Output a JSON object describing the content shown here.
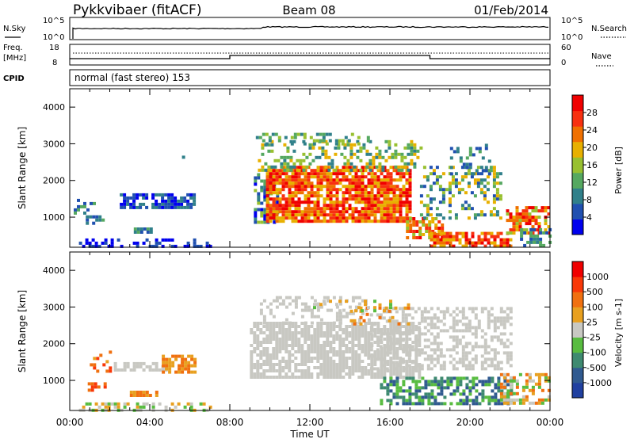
{
  "header": {
    "station": "Pykkvibaer (fitACF)",
    "beam": "Beam 08",
    "date": "01/Feb/2014"
  },
  "noise_panel": {
    "left_label": "N.Sky",
    "right_label": "N.Search",
    "ytick_top": "10^5",
    "ytick_bottom": "10^0"
  },
  "freq_panel": {
    "label_line1": "Freq.",
    "label_line2": "[MHz]",
    "right_label": "Nave",
    "left_ticks": [
      "18",
      "8"
    ],
    "right_ticks": [
      "60",
      "0"
    ],
    "freq_steps": [
      {
        "start": 0,
        "end": 8.0,
        "level": "low"
      },
      {
        "start": 8.0,
        "end": 18.0,
        "level": "high"
      },
      {
        "start": 18.0,
        "end": 24.0,
        "level": "low"
      }
    ]
  },
  "cpid": {
    "label": "CPID",
    "text": "normal (fast stereo) 153"
  },
  "chart_data": [
    {
      "type": "heatmap",
      "name": "power",
      "ylabel": "Slant Range [km]",
      "ylim": [
        180,
        4500
      ],
      "yticks": [
        1000,
        2000,
        3000,
        4000
      ],
      "xlim": [
        0,
        24
      ],
      "colorbar": {
        "label": "Power [dB]",
        "ticks": [
          4,
          8,
          12,
          16,
          20,
          24,
          28
        ],
        "range": [
          0,
          32
        ],
        "colors": [
          "#0000ee",
          "#2050b0",
          "#30808a",
          "#55a860",
          "#98c030",
          "#e8b000",
          "#f07000",
          "#f83010",
          "#f00000"
        ]
      },
      "regions": [
        {
          "t0": 0.3,
          "t1": 7.0,
          "r0": 200,
          "r1": 420,
          "c": [
            0,
            1
          ],
          "d": 0.45
        },
        {
          "t0": 2.5,
          "t1": 6.2,
          "r0": 1250,
          "r1": 1650,
          "c": [
            0,
            2
          ],
          "d": 0.75
        },
        {
          "t0": 0.8,
          "t1": 1.6,
          "r0": 850,
          "r1": 1050,
          "c": [
            1,
            3
          ],
          "d": 0.6
        },
        {
          "t0": 0.2,
          "t1": 1.2,
          "r0": 1100,
          "r1": 1500,
          "c": [
            1,
            3
          ],
          "d": 0.3
        },
        {
          "t0": 3.2,
          "t1": 4.0,
          "r0": 600,
          "r1": 720,
          "c": [
            1,
            3
          ],
          "d": 0.7
        },
        {
          "t0": 9.2,
          "t1": 10.4,
          "r0": 900,
          "r1": 2200,
          "c": [
            0,
            4
          ],
          "d": 0.6
        },
        {
          "t0": 9.8,
          "t1": 17.0,
          "r0": 850,
          "r1": 2400,
          "c": [
            5,
            8
          ],
          "d": 0.85
        },
        {
          "t0": 9.4,
          "t1": 17.5,
          "r0": 2300,
          "r1": 3100,
          "c": [
            2,
            5
          ],
          "d": 0.35
        },
        {
          "t0": 9.3,
          "t1": 15.0,
          "r0": 3000,
          "r1": 3300,
          "c": [
            2,
            4
          ],
          "d": 0.3
        },
        {
          "t0": 16.8,
          "t1": 18.6,
          "r0": 450,
          "r1": 1000,
          "c": [
            4,
            8
          ],
          "d": 0.7
        },
        {
          "t0": 17.5,
          "t1": 21.5,
          "r0": 1000,
          "r1": 2400,
          "c": [
            1,
            5
          ],
          "d": 0.35
        },
        {
          "t0": 18.0,
          "t1": 22.0,
          "r0": 200,
          "r1": 600,
          "c": [
            5,
            8
          ],
          "d": 0.7
        },
        {
          "t0": 21.8,
          "t1": 24.0,
          "r0": 600,
          "r1": 1300,
          "c": [
            4,
            8
          ],
          "d": 0.6
        },
        {
          "t0": 22.5,
          "t1": 24.0,
          "r0": 200,
          "r1": 700,
          "c": [
            1,
            3
          ],
          "d": 0.5
        },
        {
          "t0": 19.0,
          "t1": 21.0,
          "r0": 2200,
          "r1": 3000,
          "c": [
            1,
            3
          ],
          "d": 0.25
        },
        {
          "t0": 4.5,
          "t1": 5.8,
          "r0": 2650,
          "r1": 2850,
          "c": [
            1,
            2
          ],
          "d": 0.1
        }
      ]
    },
    {
      "type": "heatmap",
      "name": "velocity",
      "ylabel": "Slant Range [km]",
      "xlabel": "Time UT",
      "ylim": [
        180,
        4500
      ],
      "yticks": [
        1000,
        2000,
        3000,
        4000
      ],
      "xlim": [
        0,
        24
      ],
      "xticks": [
        "00:00",
        "04:00",
        "08:00",
        "12:00",
        "16:00",
        "20:00",
        "00:00"
      ],
      "colorbar": {
        "label": "Velocity [m s-1]",
        "ticks": [
          "1000",
          "500",
          "100",
          "25",
          "-25",
          "-100",
          "-500",
          "-1000"
        ],
        "colors": [
          "#2040a0",
          "#305a90",
          "#3e8a70",
          "#58bc40",
          "#c8c8c2",
          "#e8a020",
          "#f07010",
          "#f83808",
          "#f00000"
        ]
      },
      "regions": [
        {
          "t0": 0.3,
          "t1": 7.0,
          "r0": 200,
          "r1": 400,
          "c": [
            3,
            5
          ],
          "d": 0.45
        },
        {
          "t0": 2.2,
          "t1": 5.0,
          "r0": 1300,
          "r1": 1500,
          "c": [
            4,
            4
          ],
          "d": 0.65
        },
        {
          "t0": 4.6,
          "t1": 6.2,
          "r0": 1250,
          "r1": 1700,
          "c": [
            5,
            6
          ],
          "d": 0.65
        },
        {
          "t0": 0.9,
          "t1": 1.7,
          "r0": 750,
          "r1": 950,
          "c": [
            6,
            7
          ],
          "d": 0.75
        },
        {
          "t0": 3.0,
          "t1": 4.3,
          "r0": 620,
          "r1": 720,
          "c": [
            5,
            6
          ],
          "d": 0.75
        },
        {
          "t0": 1.0,
          "t1": 2.0,
          "r0": 1100,
          "r1": 1900,
          "c": [
            5,
            7
          ],
          "d": 0.25
        },
        {
          "t0": 9.0,
          "t1": 17.5,
          "r0": 1100,
          "r1": 2600,
          "c": [
            4,
            4
          ],
          "d": 0.75
        },
        {
          "t0": 9.5,
          "t1": 15.0,
          "r0": 2600,
          "r1": 3300,
          "c": [
            4,
            4
          ],
          "d": 0.3
        },
        {
          "t0": 15.0,
          "t1": 22.0,
          "r0": 1300,
          "r1": 3000,
          "c": [
            4,
            4
          ],
          "d": 0.45
        },
        {
          "t0": 15.5,
          "t1": 22.0,
          "r0": 400,
          "r1": 1100,
          "c": [
            1,
            3
          ],
          "d": 0.6
        },
        {
          "t0": 21.5,
          "t1": 24.0,
          "r0": 400,
          "r1": 1200,
          "c": [
            3,
            6
          ],
          "d": 0.55
        },
        {
          "t0": 14.0,
          "t1": 17.0,
          "r0": 2500,
          "r1": 3100,
          "c": [
            5,
            6
          ],
          "d": 0.2
        },
        {
          "t0": 12.0,
          "t1": 16.0,
          "r0": 2900,
          "r1": 3200,
          "c": [
            3,
            5
          ],
          "d": 0.2
        }
      ]
    }
  ]
}
